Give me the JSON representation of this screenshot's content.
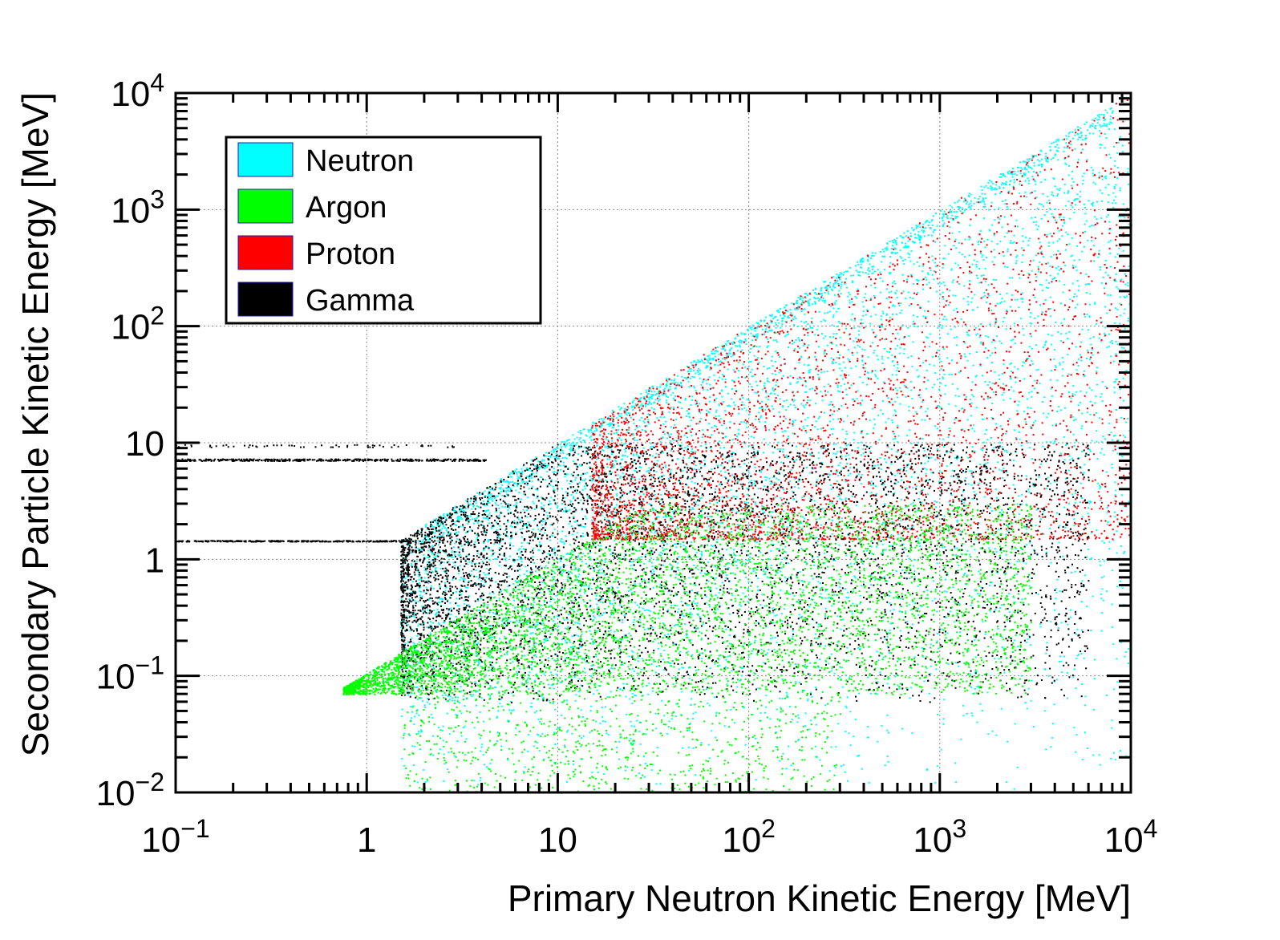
{
  "chart_data": {
    "type": "scatter",
    "title": "",
    "xlabel": "Primary Neutron Kinetic Energy [MeV]",
    "ylabel": "Secondary Particle Kinetic Energy [MeV]",
    "xscale": "log",
    "yscale": "log",
    "xlim": [
      0.1,
      10000
    ],
    "ylim": [
      0.01,
      10000
    ],
    "grid": true,
    "legend_position": "top-left",
    "x_ticks": [
      {
        "value": 0.1,
        "base": "10",
        "exp": "−1"
      },
      {
        "value": 1,
        "base": "1",
        "exp": ""
      },
      {
        "value": 10,
        "base": "10",
        "exp": ""
      },
      {
        "value": 100,
        "base": "10",
        "exp": "2"
      },
      {
        "value": 1000,
        "base": "10",
        "exp": "3"
      },
      {
        "value": 10000,
        "base": "10",
        "exp": "4"
      }
    ],
    "y_ticks": [
      {
        "value": 0.01,
        "base": "10",
        "exp": "−2"
      },
      {
        "value": 0.1,
        "base": "10",
        "exp": "−1"
      },
      {
        "value": 1,
        "base": "1",
        "exp": ""
      },
      {
        "value": 10,
        "base": "10",
        "exp": ""
      },
      {
        "value": 100,
        "base": "10",
        "exp": "2"
      },
      {
        "value": 1000,
        "base": "10",
        "exp": "3"
      },
      {
        "value": 10000,
        "base": "10",
        "exp": "4"
      }
    ],
    "series": [
      {
        "name": "Neutron",
        "color": "#00ffff",
        "regions": [
          {
            "x": [
              1.5,
              10000
            ],
            "y_max_ratio": 1.0,
            "y_min": 0.01,
            "description_of_shape": "fills triangle below y = x"
          }
        ]
      },
      {
        "name": "Argon",
        "color": "#00ff00",
        "regions": [
          {
            "x": [
              0.75,
              3000
            ],
            "y_min": 0.07,
            "y_max_ratio": 0.095,
            "y_cap": 3
          }
        ]
      },
      {
        "name": "Proton",
        "color": "#ff0000",
        "regions": [
          {
            "x": [
              15,
              10000
            ],
            "y_min": 1.5,
            "y_max_ratio": 1.0
          }
        ]
      },
      {
        "name": "Gamma",
        "color": "#000000",
        "regions": [
          {
            "x": [
              1.5,
              6000
            ],
            "y_min": 0.06,
            "y_max": 10
          },
          {
            "x": [
              0.1,
              4.2
            ],
            "y": 7.2,
            "type": "line"
          },
          {
            "x": [
              0.1,
              1.8
            ],
            "y": 1.45,
            "type": "line"
          }
        ]
      }
    ]
  }
}
